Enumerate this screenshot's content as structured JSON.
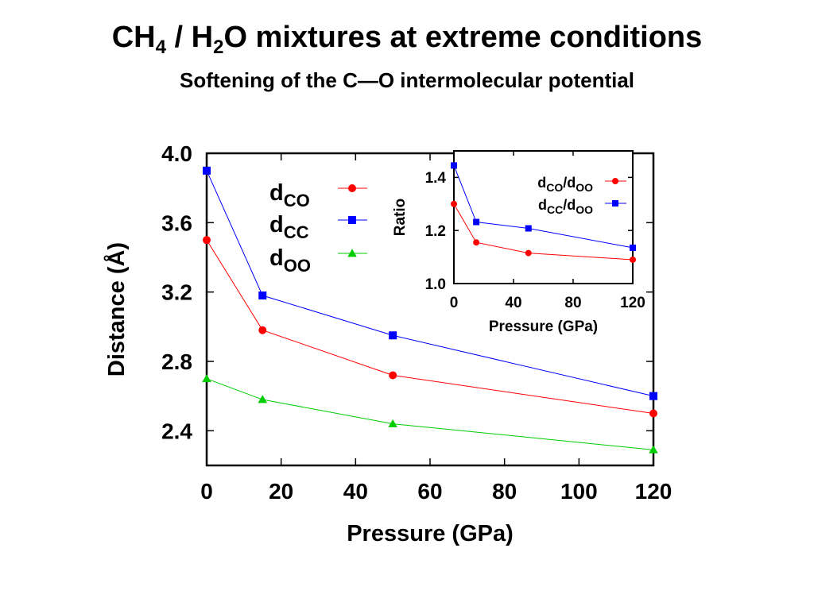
{
  "title": {
    "parts": [
      {
        "text": "CH",
        "sub": false
      },
      {
        "text": "4",
        "sub": true
      },
      {
        "text": " / H",
        "sub": false
      },
      {
        "text": "2",
        "sub": true
      },
      {
        "text": "O mixtures at extreme conditions",
        "sub": false
      }
    ]
  },
  "subtitle": "Softening of the C—O intermolecular potential",
  "chart_data": [
    {
      "type": "line",
      "xlabel": "Pressure (GPa)",
      "ylabel": "Distance (Å)",
      "xlim": [
        0,
        120
      ],
      "ylim": [
        2.2,
        4.0
      ],
      "xticks": [
        0,
        20,
        40,
        60,
        80,
        100,
        120
      ],
      "yticks": [
        2.4,
        2.8,
        3.2,
        3.6,
        4.0
      ],
      "ytick_labels": [
        "2.4",
        "2.8",
        "3.2",
        "3.6",
        "4.0"
      ],
      "grid": false,
      "legend_position": "top-left",
      "x": [
        0,
        15,
        50,
        120
      ],
      "series": [
        {
          "name": "d",
          "subscript": "CO",
          "color": "#ff0000",
          "marker": "circle",
          "values": [
            3.5,
            2.98,
            2.72,
            2.5
          ]
        },
        {
          "name": "d",
          "subscript": "CC",
          "color": "#0000ff",
          "marker": "square",
          "values": [
            3.9,
            3.18,
            2.95,
            2.6
          ]
        },
        {
          "name": "d",
          "subscript": "OO",
          "color": "#00cc00",
          "marker": "triangle",
          "values": [
            2.7,
            2.58,
            2.44,
            2.29
          ]
        }
      ]
    },
    {
      "type": "line",
      "inset": true,
      "xlabel": "Pressure (GPa)",
      "ylabel": "Ratio",
      "xlim": [
        0,
        120
      ],
      "ylim": [
        1.0,
        1.5
      ],
      "xticks": [
        0,
        40,
        80,
        120
      ],
      "yticks": [
        1.0,
        1.2,
        1.4
      ],
      "ytick_labels": [
        "1.0",
        "1.2",
        "1.4"
      ],
      "grid": false,
      "legend_position": "top-right",
      "x": [
        0,
        15,
        50,
        120
      ],
      "series": [
        {
          "name": "d",
          "label_parts": [
            "d",
            "CO",
            "/d",
            "OO"
          ],
          "color": "#ff0000",
          "marker": "circle",
          "values": [
            1.3,
            1.155,
            1.115,
            1.09
          ]
        },
        {
          "name": "d",
          "label_parts": [
            "d",
            "CC",
            "/d",
            "OO"
          ],
          "color": "#0000ff",
          "marker": "square",
          "values": [
            1.445,
            1.232,
            1.208,
            1.135
          ]
        }
      ]
    }
  ]
}
